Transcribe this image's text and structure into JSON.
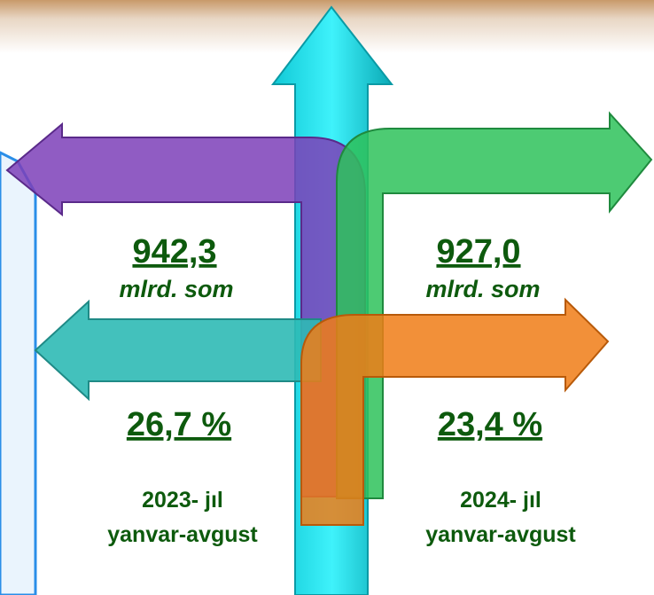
{
  "left": {
    "amount": "942,3",
    "unit": "mlrd. som",
    "share": "26,7 %",
    "year": "2023- jıl",
    "period": "yanvar-avgust"
  },
  "right": {
    "amount": "927,0",
    "unit": "mlrd. som",
    "share": "23,4 %",
    "year": "2024- jıl",
    "period": "yanvar-avgust"
  }
}
